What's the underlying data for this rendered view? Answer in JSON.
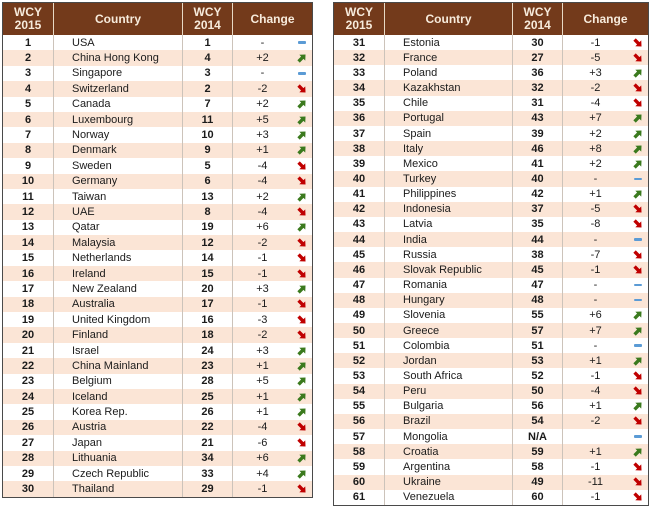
{
  "colors": {
    "header-bg": "#733A1B",
    "header-text": "#F7EBDC",
    "header-sep": "#E8D9C4",
    "stripe": "#FBE5D6",
    "row-bg": "#FFFFFF",
    "grid-line": "#CCC3BA",
    "table-border": "#4A4A4A",
    "text": "#1B1B1B",
    "up-arrow": "#3B7A1E",
    "down-arrow": "#C00000",
    "no-change": "#5B9BD5"
  },
  "header": {
    "wcy2015_line1": "WCY",
    "wcy2015_line2": "2015",
    "country": "Country",
    "wcy2014_line1": "WCY",
    "wcy2014_line2": "2014",
    "change": "Change"
  },
  "chart_data": [
    {
      "type": "table",
      "columns": [
        "WCY 2015",
        "Country",
        "WCY 2014",
        "Change"
      ],
      "rows": [
        {
          "rank": "1",
          "country": "USA",
          "wcy2014": "1",
          "change": "-",
          "trend": "same"
        },
        {
          "rank": "2",
          "country": "China Hong Kong",
          "wcy2014": "4",
          "change": "+2",
          "trend": "up"
        },
        {
          "rank": "3",
          "country": "Singapore",
          "wcy2014": "3",
          "change": "-",
          "trend": "same"
        },
        {
          "rank": "4",
          "country": "Switzerland",
          "wcy2014": "2",
          "change": "-2",
          "trend": "down"
        },
        {
          "rank": "5",
          "country": "Canada",
          "wcy2014": "7",
          "change": "+2",
          "trend": "up"
        },
        {
          "rank": "6",
          "country": "Luxembourg",
          "wcy2014": "11",
          "change": "+5",
          "trend": "up"
        },
        {
          "rank": "7",
          "country": "Norway",
          "wcy2014": "10",
          "change": "+3",
          "trend": "up"
        },
        {
          "rank": "8",
          "country": "Denmark",
          "wcy2014": "9",
          "change": "+1",
          "trend": "up"
        },
        {
          "rank": "9",
          "country": "Sweden",
          "wcy2014": "5",
          "change": "-4",
          "trend": "down"
        },
        {
          "rank": "10",
          "country": "Germany",
          "wcy2014": "6",
          "change": "-4",
          "trend": "down"
        },
        {
          "rank": "11",
          "country": "Taiwan",
          "wcy2014": "13",
          "change": "+2",
          "trend": "up"
        },
        {
          "rank": "12",
          "country": "UAE",
          "wcy2014": "8",
          "change": "-4",
          "trend": "down"
        },
        {
          "rank": "13",
          "country": "Qatar",
          "wcy2014": "19",
          "change": "+6",
          "trend": "up"
        },
        {
          "rank": "14",
          "country": "Malaysia",
          "wcy2014": "12",
          "change": "-2",
          "trend": "down"
        },
        {
          "rank": "15",
          "country": "Netherlands",
          "wcy2014": "14",
          "change": "-1",
          "trend": "down"
        },
        {
          "rank": "16",
          "country": "Ireland",
          "wcy2014": "15",
          "change": "-1",
          "trend": "down"
        },
        {
          "rank": "17",
          "country": "New Zealand",
          "wcy2014": "20",
          "change": "+3",
          "trend": "up"
        },
        {
          "rank": "18",
          "country": "Australia",
          "wcy2014": "17",
          "change": "-1",
          "trend": "down"
        },
        {
          "rank": "19",
          "country": "United Kingdom",
          "wcy2014": "16",
          "change": "-3",
          "trend": "down"
        },
        {
          "rank": "20",
          "country": "Finland",
          "wcy2014": "18",
          "change": "-2",
          "trend": "down"
        },
        {
          "rank": "21",
          "country": "Israel",
          "wcy2014": "24",
          "change": "+3",
          "trend": "up"
        },
        {
          "rank": "22",
          "country": "China Mainland",
          "wcy2014": "23",
          "change": "+1",
          "trend": "up"
        },
        {
          "rank": "23",
          "country": "Belgium",
          "wcy2014": "28",
          "change": "+5",
          "trend": "up"
        },
        {
          "rank": "24",
          "country": "Iceland",
          "wcy2014": "25",
          "change": "+1",
          "trend": "up"
        },
        {
          "rank": "25",
          "country": "Korea Rep.",
          "wcy2014": "26",
          "change": "+1",
          "trend": "up"
        },
        {
          "rank": "26",
          "country": "Austria",
          "wcy2014": "22",
          "change": "-4",
          "trend": "down"
        },
        {
          "rank": "27",
          "country": "Japan",
          "wcy2014": "21",
          "change": "-6",
          "trend": "down"
        },
        {
          "rank": "28",
          "country": "Lithuania",
          "wcy2014": "34",
          "change": "+6",
          "trend": "up"
        },
        {
          "rank": "29",
          "country": "Czech Republic",
          "wcy2014": "33",
          "change": "+4",
          "trend": "up"
        },
        {
          "rank": "30",
          "country": "Thailand",
          "wcy2014": "29",
          "change": "-1",
          "trend": "down"
        }
      ]
    },
    {
      "type": "table",
      "columns": [
        "WCY 2015",
        "Country",
        "WCY 2014",
        "Change"
      ],
      "rows": [
        {
          "rank": "31",
          "country": "Estonia",
          "wcy2014": "30",
          "change": "-1",
          "trend": "down"
        },
        {
          "rank": "32",
          "country": "France",
          "wcy2014": "27",
          "change": "-5",
          "trend": "down"
        },
        {
          "rank": "33",
          "country": "Poland",
          "wcy2014": "36",
          "change": "+3",
          "trend": "up"
        },
        {
          "rank": "34",
          "country": "Kazakhstan",
          "wcy2014": "32",
          "change": "-2",
          "trend": "down"
        },
        {
          "rank": "35",
          "country": "Chile",
          "wcy2014": "31",
          "change": "-4",
          "trend": "down"
        },
        {
          "rank": "36",
          "country": "Portugal",
          "wcy2014": "43",
          "change": "+7",
          "trend": "up"
        },
        {
          "rank": "37",
          "country": "Spain",
          "wcy2014": "39",
          "change": "+2",
          "trend": "up"
        },
        {
          "rank": "38",
          "country": "Italy",
          "wcy2014": "46",
          "change": "+8",
          "trend": "up"
        },
        {
          "rank": "39",
          "country": "Mexico",
          "wcy2014": "41",
          "change": "+2",
          "trend": "up"
        },
        {
          "rank": "40",
          "country": "Turkey",
          "wcy2014": "40",
          "change": "-",
          "trend": "same"
        },
        {
          "rank": "41",
          "country": "Philippines",
          "wcy2014": "42",
          "change": "+1",
          "trend": "up"
        },
        {
          "rank": "42",
          "country": "Indonesia",
          "wcy2014": "37",
          "change": "-5",
          "trend": "down"
        },
        {
          "rank": "43",
          "country": "Latvia",
          "wcy2014": "35",
          "change": "-8",
          "trend": "down"
        },
        {
          "rank": "44",
          "country": "India",
          "wcy2014": "44",
          "change": "-",
          "trend": "same"
        },
        {
          "rank": "45",
          "country": "Russia",
          "wcy2014": "38",
          "change": "-7",
          "trend": "down"
        },
        {
          "rank": "46",
          "country": "Slovak Republic",
          "wcy2014": "45",
          "change": "-1",
          "trend": "down"
        },
        {
          "rank": "47",
          "country": "Romania",
          "wcy2014": "47",
          "change": "-",
          "trend": "same"
        },
        {
          "rank": "48",
          "country": "Hungary",
          "wcy2014": "48",
          "change": "-",
          "trend": "same"
        },
        {
          "rank": "49",
          "country": "Slovenia",
          "wcy2014": "55",
          "change": "+6",
          "trend": "up"
        },
        {
          "rank": "50",
          "country": "Greece",
          "wcy2014": "57",
          "change": "+7",
          "trend": "up"
        },
        {
          "rank": "51",
          "country": "Colombia",
          "wcy2014": "51",
          "change": "-",
          "trend": "same"
        },
        {
          "rank": "52",
          "country": "Jordan",
          "wcy2014": "53",
          "change": "+1",
          "trend": "up"
        },
        {
          "rank": "53",
          "country": "South Africa",
          "wcy2014": "52",
          "change": "-1",
          "trend": "down"
        },
        {
          "rank": "54",
          "country": "Peru",
          "wcy2014": "50",
          "change": "-4",
          "trend": "down"
        },
        {
          "rank": "55",
          "country": "Bulgaria",
          "wcy2014": "56",
          "change": "+1",
          "trend": "up"
        },
        {
          "rank": "56",
          "country": "Brazil",
          "wcy2014": "54",
          "change": "-2",
          "trend": "down"
        },
        {
          "rank": "57",
          "country": "Mongolia",
          "wcy2014": "N/A",
          "change": "",
          "trend": "same"
        },
        {
          "rank": "58",
          "country": "Croatia",
          "wcy2014": "59",
          "change": "+1",
          "trend": "up"
        },
        {
          "rank": "59",
          "country": "Argentina",
          "wcy2014": "58",
          "change": "-1",
          "trend": "down"
        },
        {
          "rank": "60",
          "country": "Ukraine",
          "wcy2014": "49",
          "change": "-11",
          "trend": "down"
        },
        {
          "rank": "61",
          "country": "Venezuela",
          "wcy2014": "60",
          "change": "-1",
          "trend": "down"
        }
      ]
    }
  ]
}
